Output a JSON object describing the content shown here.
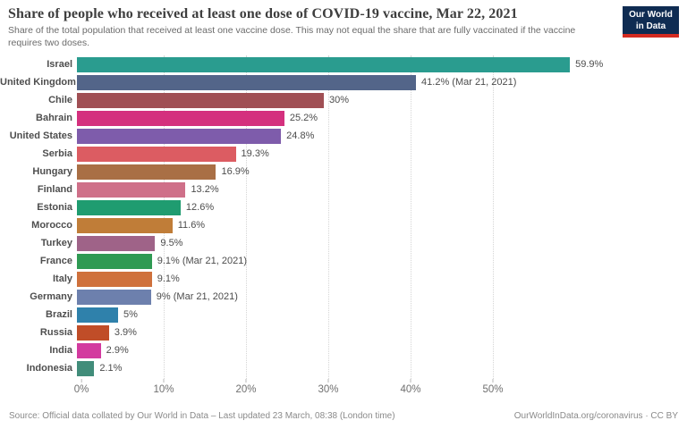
{
  "header": {
    "title": "Share of people who received at least one dose of COVID-19 vaccine, Mar 22, 2021",
    "subtitle": "Share of the total population that received at least one vaccine dose. This may not equal the share that are fully vaccinated if the vaccine requires two doses.",
    "logo_line1": "Our World",
    "logo_line2": "in Data",
    "logo_bg_color": "#0f2c52",
    "logo_stripe_color": "#d42b21"
  },
  "chart_data": {
    "type": "bar",
    "orientation": "horizontal",
    "title": "Share of people who received at least one dose of COVID-19 vaccine, Mar 22, 2021",
    "xlabel": "",
    "ylabel": "",
    "unit": "%",
    "xlim": [
      0,
      60
    ],
    "ticks": [
      0,
      10,
      20,
      30,
      40,
      50
    ],
    "tick_labels": [
      "0%",
      "10%",
      "20%",
      "30%",
      "40%",
      "50%"
    ],
    "grid": "vertical-dotted",
    "legend": "none",
    "rows": [
      {
        "country": "Israel",
        "value": 59.9,
        "label": "59.9%",
        "color": "#2a9c8f"
      },
      {
        "country": "United Kingdom",
        "value": 41.2,
        "label": "41.2% (Mar 21, 2021)",
        "color": "#536589"
      },
      {
        "country": "Chile",
        "value": 30.0,
        "label": "30%",
        "color": "#a04f54"
      },
      {
        "country": "Bahrain",
        "value": 25.2,
        "label": "25.2%",
        "color": "#d4307e"
      },
      {
        "country": "United States",
        "value": 24.8,
        "label": "24.8%",
        "color": "#7e5cab"
      },
      {
        "country": "Serbia",
        "value": 19.3,
        "label": "19.3%",
        "color": "#dc5c62"
      },
      {
        "country": "Hungary",
        "value": 16.9,
        "label": "16.9%",
        "color": "#a96f45"
      },
      {
        "country": "Finland",
        "value": 13.2,
        "label": "13.2%",
        "color": "#cf7089"
      },
      {
        "country": "Estonia",
        "value": 12.6,
        "label": "12.6%",
        "color": "#1f9c70"
      },
      {
        "country": "Morocco",
        "value": 11.6,
        "label": "11.6%",
        "color": "#c07d38"
      },
      {
        "country": "Turkey",
        "value": 9.5,
        "label": "9.5%",
        "color": "#9f6388"
      },
      {
        "country": "France",
        "value": 9.1,
        "label": "9.1% (Mar 21, 2021)",
        "color": "#2f9a53"
      },
      {
        "country": "Italy",
        "value": 9.1,
        "label": "9.1%",
        "color": "#cf713c"
      },
      {
        "country": "Germany",
        "value": 9.0,
        "label": "9% (Mar 21, 2021)",
        "color": "#6d80ad"
      },
      {
        "country": "Brazil",
        "value": 5.0,
        "label": "5%",
        "color": "#2f81ab"
      },
      {
        "country": "Russia",
        "value": 3.9,
        "label": "3.9%",
        "color": "#c04d28"
      },
      {
        "country": "India",
        "value": 2.9,
        "label": "2.9%",
        "color": "#d33a9f"
      },
      {
        "country": "Indonesia",
        "value": 2.1,
        "label": "2.1%",
        "color": "#418d7a"
      }
    ]
  },
  "footer": {
    "source": "Source: Official data collated by Our World in Data – Last updated 23 March, 08:38 (London time)",
    "link": "OurWorldInData.org/coronavirus · CC BY"
  }
}
